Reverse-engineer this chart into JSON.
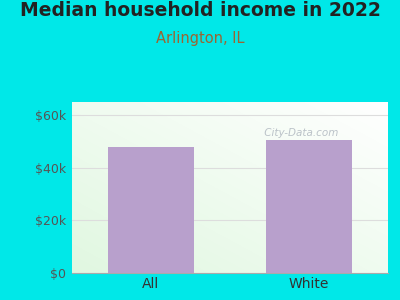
{
  "title": "Median household income in 2022",
  "subtitle": "Arlington, IL",
  "categories": [
    "All",
    "White"
  ],
  "values": [
    48000,
    50500
  ],
  "bar_color": "#b8a0cc",
  "background_color": "#00e8e8",
  "title_color": "#222222",
  "subtitle_color": "#996633",
  "ytick_labels": [
    "$0",
    "$20k",
    "$40k",
    "$60k"
  ],
  "ytick_values": [
    0,
    20000,
    40000,
    60000
  ],
  "ylim": [
    0,
    65000
  ],
  "grid_color": "#dddddd",
  "watermark": " City-Data.com",
  "title_fontsize": 13.5,
  "subtitle_fontsize": 10.5,
  "tick_fontsize": 9,
  "xtick_fontsize": 10
}
